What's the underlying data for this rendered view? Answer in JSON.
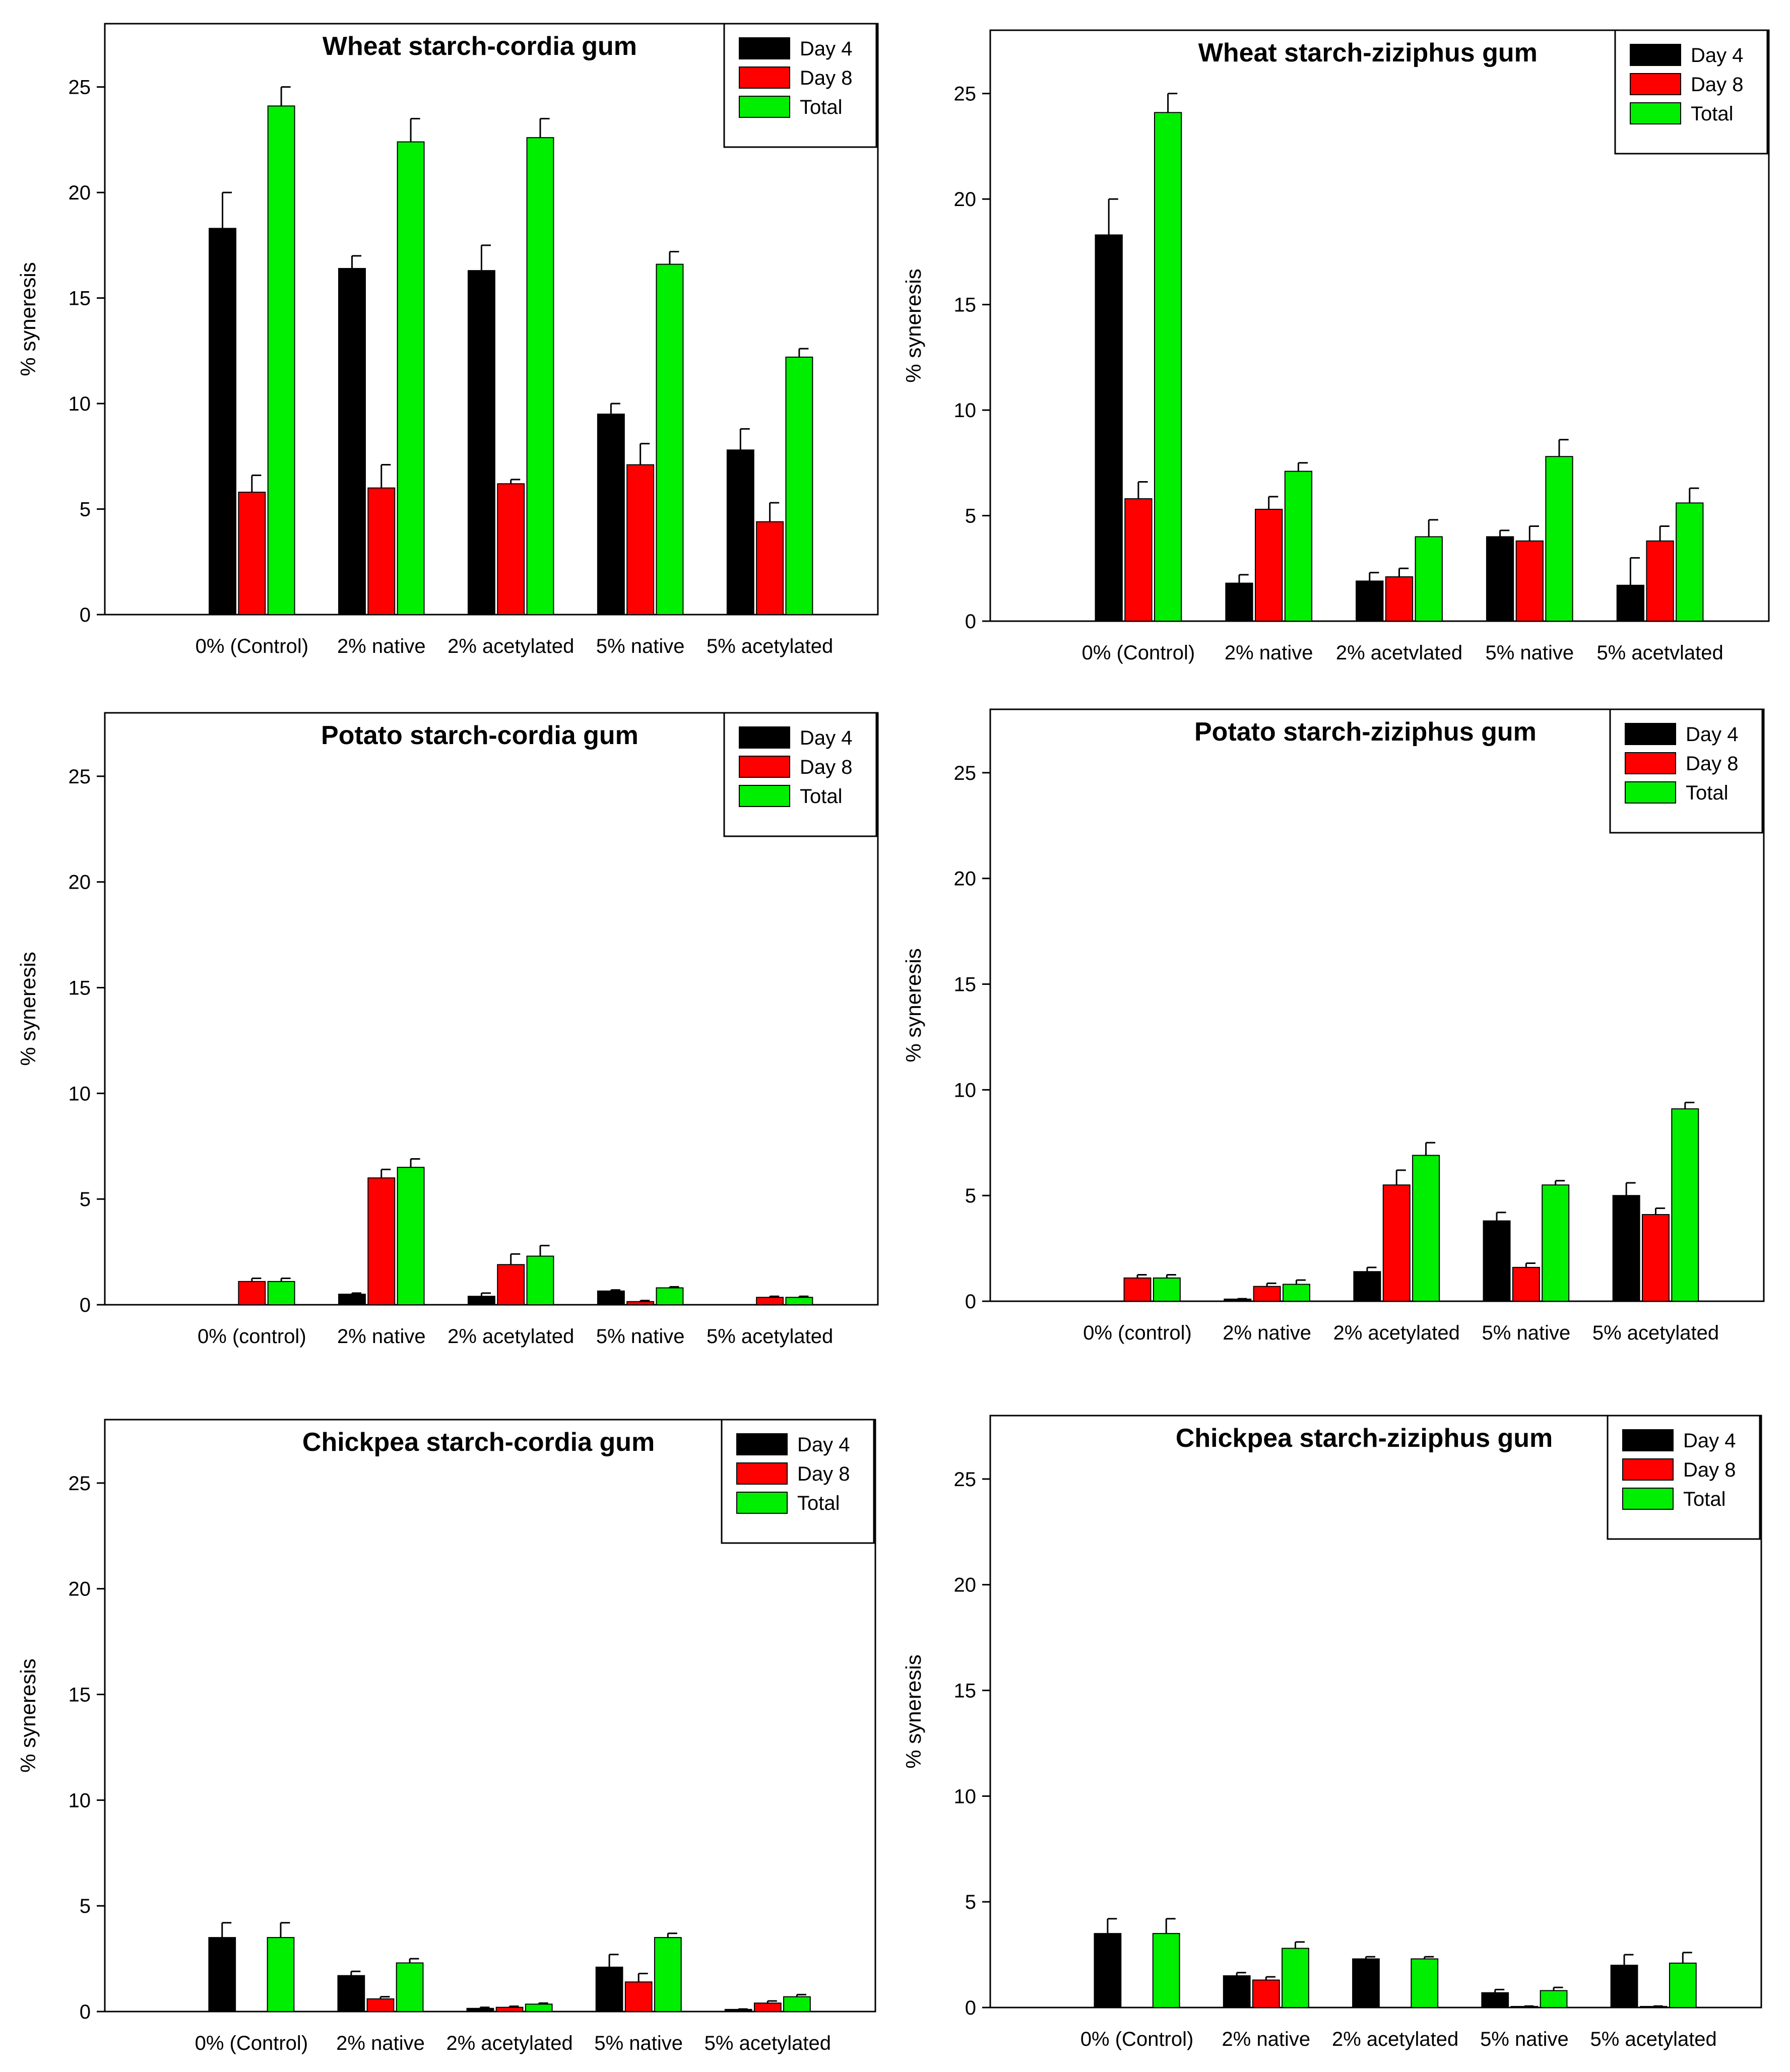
{
  "figure": {
    "colors": {
      "day4": "#000000",
      "day8": "#ff0000",
      "total": "#00ee00",
      "axis": "#000000",
      "background": "#ffffff"
    }
  },
  "chart_data": [
    {
      "type": "bar",
      "title": "Wheat starch-cordia gum",
      "xlabel": "",
      "ylabel": "% syneresis",
      "ylim": [
        0,
        28
      ],
      "yticks": [
        0,
        5,
        10,
        15,
        20,
        25
      ],
      "categories": [
        "0% (Control)",
        "2% native",
        "2% acetylated",
        "5% native",
        "5% acetylated"
      ],
      "legend_position": "top-right",
      "series": [
        {
          "name": "Day 4",
          "values": [
            18.3,
            16.4,
            16.3,
            9.5,
            7.8
          ],
          "errors": [
            1.7,
            0.6,
            1.2,
            0.5,
            1.0
          ]
        },
        {
          "name": "Day 8",
          "values": [
            5.8,
            6.0,
            6.2,
            7.1,
            4.4
          ],
          "errors": [
            0.8,
            1.1,
            0.2,
            1.0,
            0.9
          ]
        },
        {
          "name": "Total",
          "values": [
            24.1,
            22.4,
            22.6,
            16.6,
            12.2
          ],
          "errors": [
            0.9,
            1.1,
            0.9,
            0.6,
            0.4
          ]
        }
      ]
    },
    {
      "type": "bar",
      "title": "Wheat starch-ziziphus gum",
      "xlabel": "",
      "ylabel": "% syneresis",
      "ylim": [
        0,
        28
      ],
      "yticks": [
        0,
        5,
        10,
        15,
        20,
        25
      ],
      "categories": [
        "0% (Control)",
        "2% native",
        "2% acetvlated",
        "5% native",
        "5% acetvlated"
      ],
      "legend_position": "top-right",
      "series": [
        {
          "name": "Day 4",
          "values": [
            18.3,
            1.8,
            1.9,
            4.0,
            1.7
          ],
          "errors": [
            1.7,
            0.4,
            0.4,
            0.3,
            1.3
          ]
        },
        {
          "name": "Day 8",
          "values": [
            5.8,
            5.3,
            2.1,
            3.8,
            3.8
          ],
          "errors": [
            0.8,
            0.6,
            0.4,
            0.7,
            0.7
          ]
        },
        {
          "name": "Total",
          "values": [
            24.1,
            7.1,
            4.0,
            7.8,
            5.6
          ],
          "errors": [
            0.9,
            0.4,
            0.8,
            0.8,
            0.7
          ]
        }
      ]
    },
    {
      "type": "bar",
      "title": "Potato starch-cordia gum",
      "xlabel": "",
      "ylabel": "% syneresis",
      "ylim": [
        0,
        28
      ],
      "yticks": [
        0,
        5,
        10,
        15,
        20,
        25
      ],
      "categories": [
        "0% (control)",
        "2% native",
        "2% acetylated",
        "5% native",
        "5% acetylated"
      ],
      "legend_position": "top-right",
      "series": [
        {
          "name": "Day 4",
          "values": [
            0,
            0.5,
            0.4,
            0.65,
            0
          ],
          "errors": [
            0,
            0.05,
            0.15,
            0.05,
            0
          ]
        },
        {
          "name": "Day 8",
          "values": [
            1.1,
            6.0,
            1.9,
            0.15,
            0.35
          ],
          "errors": [
            0.15,
            0.4,
            0.5,
            0.05,
            0.05
          ]
        },
        {
          "name": "Total",
          "values": [
            1.1,
            6.5,
            2.3,
            0.8,
            0.35
          ],
          "errors": [
            0.15,
            0.4,
            0.5,
            0.05,
            0.05
          ]
        }
      ]
    },
    {
      "type": "bar",
      "title": "Potato starch-ziziphus gum",
      "xlabel": "",
      "ylabel": "% syneresis",
      "ylim": [
        0,
        28
      ],
      "yticks": [
        0,
        5,
        10,
        15,
        20,
        25
      ],
      "categories": [
        "0% (control)",
        "2% native",
        "2% acetylated",
        "5% native",
        "5% acetylated"
      ],
      "legend_position": "top-right",
      "series": [
        {
          "name": "Day 4",
          "values": [
            0,
            0.1,
            1.4,
            3.8,
            5.0
          ],
          "errors": [
            0,
            0.02,
            0.2,
            0.4,
            0.6
          ]
        },
        {
          "name": "Day 8",
          "values": [
            1.1,
            0.7,
            5.5,
            1.6,
            4.1
          ],
          "errors": [
            0.15,
            0.15,
            0.7,
            0.2,
            0.3
          ]
        },
        {
          "name": "Total",
          "values": [
            1.1,
            0.8,
            6.9,
            5.5,
            9.1
          ],
          "errors": [
            0.15,
            0.2,
            0.6,
            0.2,
            0.3
          ]
        }
      ]
    },
    {
      "type": "bar",
      "title": "Chickpea starch-cordia gum",
      "xlabel": "",
      "ylabel": "% syneresis",
      "ylim": [
        0,
        28
      ],
      "yticks": [
        0,
        5,
        10,
        15,
        20,
        25
      ],
      "categories": [
        "0% (Control)",
        "2% native",
        "2% acetylated",
        "5% native",
        "5% acetylated"
      ],
      "legend_position": "top-right",
      "series": [
        {
          "name": "Day 4",
          "values": [
            3.5,
            1.7,
            0.15,
            2.1,
            0.1
          ],
          "errors": [
            0.7,
            0.2,
            0.05,
            0.6,
            0.02
          ]
        },
        {
          "name": "Day 8",
          "values": [
            0,
            0.6,
            0.2,
            1.4,
            0.4
          ],
          "errors": [
            0,
            0.1,
            0.05,
            0.4,
            0.1
          ]
        },
        {
          "name": "Total",
          "values": [
            3.5,
            2.3,
            0.35,
            3.5,
            0.7
          ],
          "errors": [
            0.7,
            0.2,
            0.05,
            0.2,
            0.1
          ]
        }
      ]
    },
    {
      "type": "bar",
      "title": "Chickpea starch-ziziphus gum",
      "xlabel": "",
      "ylabel": "% syneresis",
      "ylim": [
        0,
        28
      ],
      "yticks": [
        0,
        5,
        10,
        15,
        20,
        25
      ],
      "categories": [
        "0% (Control)",
        "2% native",
        "2% acetylated",
        "5% native",
        "5% acetylated"
      ],
      "legend_position": "top-right",
      "series": [
        {
          "name": "Day 4",
          "values": [
            3.5,
            1.5,
            2.3,
            0.7,
            2.0
          ],
          "errors": [
            0.7,
            0.15,
            0.1,
            0.15,
            0.5
          ]
        },
        {
          "name": "Day 8",
          "values": [
            0,
            1.3,
            0,
            0.05,
            0.05
          ],
          "errors": [
            0,
            0.15,
            0,
            0.02,
            0.02
          ]
        },
        {
          "name": "Total",
          "values": [
            3.5,
            2.8,
            2.3,
            0.8,
            2.1
          ],
          "errors": [
            0.7,
            0.3,
            0.1,
            0.15,
            0.5
          ]
        }
      ]
    }
  ]
}
